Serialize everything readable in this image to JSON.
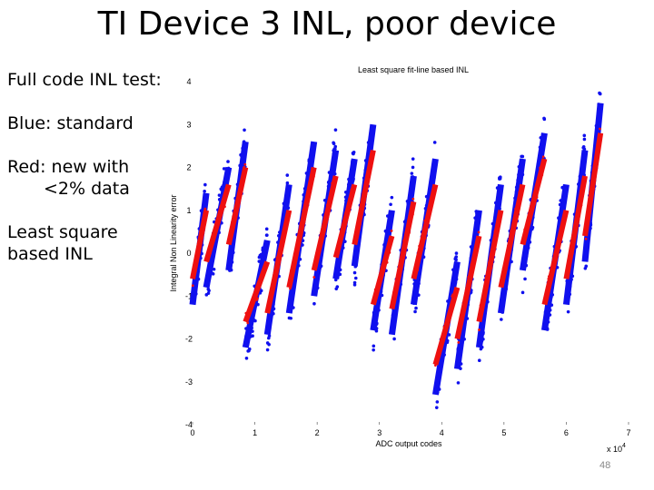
{
  "slide": {
    "title": "TI Device 3 INL, poor device",
    "bullets": [
      {
        "line1": "Full code INL test:",
        "line2": ""
      },
      {
        "line1": "Blue: standard",
        "line2": ""
      },
      {
        "line1": "Red: new with",
        "line2": "<2% data"
      },
      {
        "line1": "Least square",
        "line2": "based INL"
      }
    ],
    "slide_number": "48"
  },
  "chart_data": {
    "type": "scatter",
    "title": "Least square fit-line based INL",
    "xlabel": "ADC output codes",
    "ylabel": "Integral Non Linearity error",
    "x_multiplier": "x 10",
    "x_multiplier_exp": "4",
    "xlim": [
      0,
      7
    ],
    "ylim": [
      -4,
      4
    ],
    "xticks": [
      "0",
      "1",
      "2",
      "3",
      "4",
      "5",
      "6",
      "7"
    ],
    "yticks": [
      "4",
      "3",
      "2",
      "1",
      "0",
      "-1",
      "-2",
      "-3",
      "-4"
    ],
    "colors": {
      "standard": "#1010ee",
      "new": "#ee1010"
    },
    "segments_standard": [
      {
        "x0": 0.0,
        "x1": 0.22,
        "y0": -1.2,
        "y1": 1.4
      },
      {
        "x0": 0.22,
        "x1": 0.58,
        "y0": -0.8,
        "y1": 2.0
      },
      {
        "x0": 0.58,
        "x1": 0.85,
        "y0": -0.4,
        "y1": 2.6
      },
      {
        "x0": 0.85,
        "x1": 1.2,
        "y0": -2.2,
        "y1": 0.3
      },
      {
        "x0": 1.2,
        "x1": 1.55,
        "y0": -1.9,
        "y1": 1.6
      },
      {
        "x0": 1.55,
        "x1": 1.95,
        "y0": -1.4,
        "y1": 2.6
      },
      {
        "x0": 1.95,
        "x1": 2.3,
        "y0": -1.0,
        "y1": 2.4
      },
      {
        "x0": 2.3,
        "x1": 2.6,
        "y0": -0.6,
        "y1": 2.2
      },
      {
        "x0": 2.6,
        "x1": 2.9,
        "y0": -0.3,
        "y1": 3.0
      },
      {
        "x0": 2.9,
        "x1": 3.2,
        "y0": -1.8,
        "y1": 1.0
      },
      {
        "x0": 3.2,
        "x1": 3.55,
        "y0": -1.9,
        "y1": 1.8
      },
      {
        "x0": 3.55,
        "x1": 3.9,
        "y0": -1.2,
        "y1": 2.2
      },
      {
        "x0": 3.9,
        "x1": 4.25,
        "y0": -3.3,
        "y1": -0.2
      },
      {
        "x0": 4.25,
        "x1": 4.6,
        "y0": -2.7,
        "y1": 1.0
      },
      {
        "x0": 4.6,
        "x1": 4.95,
        "y0": -2.2,
        "y1": 1.6
      },
      {
        "x0": 4.95,
        "x1": 5.3,
        "y0": -1.4,
        "y1": 2.2
      },
      {
        "x0": 5.3,
        "x1": 5.65,
        "y0": -0.4,
        "y1": 2.8
      },
      {
        "x0": 5.65,
        "x1": 6.0,
        "y0": -1.8,
        "y1": 1.6
      },
      {
        "x0": 6.0,
        "x1": 6.3,
        "y0": -1.2,
        "y1": 2.4
      },
      {
        "x0": 6.3,
        "x1": 6.55,
        "y0": -0.2,
        "y1": 3.5
      }
    ],
    "segments_new": [
      {
        "x0": 0.0,
        "x1": 0.22,
        "y0": -0.6,
        "y1": 1.0
      },
      {
        "x0": 0.22,
        "x1": 0.58,
        "y0": -0.2,
        "y1": 1.6
      },
      {
        "x0": 0.58,
        "x1": 0.85,
        "y0": 0.2,
        "y1": 2.0
      },
      {
        "x0": 0.85,
        "x1": 1.2,
        "y0": -1.6,
        "y1": -0.2
      },
      {
        "x0": 1.2,
        "x1": 1.55,
        "y0": -1.4,
        "y1": 1.0
      },
      {
        "x0": 1.55,
        "x1": 1.95,
        "y0": -0.8,
        "y1": 2.0
      },
      {
        "x0": 1.95,
        "x1": 2.3,
        "y0": -0.4,
        "y1": 1.8
      },
      {
        "x0": 2.3,
        "x1": 2.6,
        "y0": -0.1,
        "y1": 1.6
      },
      {
        "x0": 2.6,
        "x1": 2.9,
        "y0": 0.2,
        "y1": 2.4
      },
      {
        "x0": 2.9,
        "x1": 3.2,
        "y0": -1.2,
        "y1": 0.4
      },
      {
        "x0": 3.2,
        "x1": 3.55,
        "y0": -1.3,
        "y1": 1.2
      },
      {
        "x0": 3.55,
        "x1": 3.9,
        "y0": -0.6,
        "y1": 1.6
      },
      {
        "x0": 3.9,
        "x1": 4.25,
        "y0": -2.6,
        "y1": -0.8
      },
      {
        "x0": 4.25,
        "x1": 4.6,
        "y0": -2.0,
        "y1": 0.4
      },
      {
        "x0": 4.6,
        "x1": 4.95,
        "y0": -1.6,
        "y1": 1.0
      },
      {
        "x0": 4.95,
        "x1": 5.3,
        "y0": -0.8,
        "y1": 1.6
      },
      {
        "x0": 5.3,
        "x1": 5.65,
        "y0": 0.2,
        "y1": 2.2
      },
      {
        "x0": 5.65,
        "x1": 6.0,
        "y0": -1.2,
        "y1": 1.0
      },
      {
        "x0": 6.0,
        "x1": 6.3,
        "y0": -0.6,
        "y1": 1.8
      },
      {
        "x0": 6.3,
        "x1": 6.55,
        "y0": 0.4,
        "y1": 2.8
      }
    ]
  }
}
